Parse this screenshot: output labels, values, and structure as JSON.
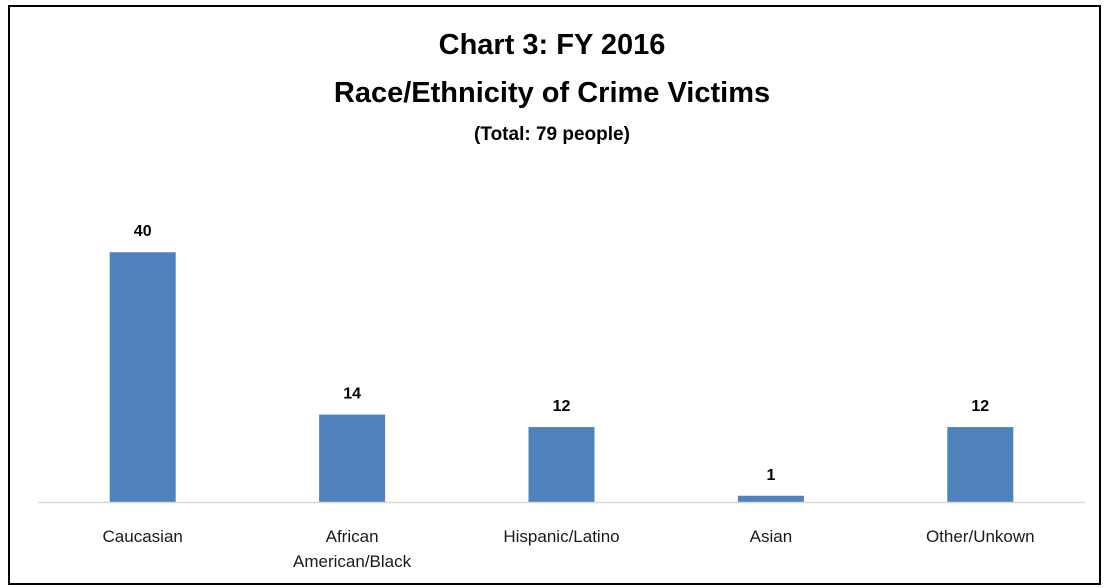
{
  "chart_data": {
    "type": "bar",
    "title": "Chart 3: FY 2016",
    "title_line2": "Race/Ethnicity of Crime Victims",
    "subtitle": "(Total: 79 people)",
    "categories": [
      "Caucasian",
      "African American/Black",
      "Hispanic/Latino",
      "Asian",
      "Other/Unkown"
    ],
    "category_lines": [
      [
        "Caucasian"
      ],
      [
        "African",
        "American/Black"
      ],
      [
        "Hispanic/Latino"
      ],
      [
        "Asian"
      ],
      [
        "Other/Unkown"
      ]
    ],
    "values": [
      40,
      14,
      12,
      1,
      12
    ],
    "ylim": [
      0,
      45
    ],
    "bar_color": "#4f81bd",
    "axis_color": "#d9d9d9",
    "grid": false,
    "legend": "none"
  }
}
